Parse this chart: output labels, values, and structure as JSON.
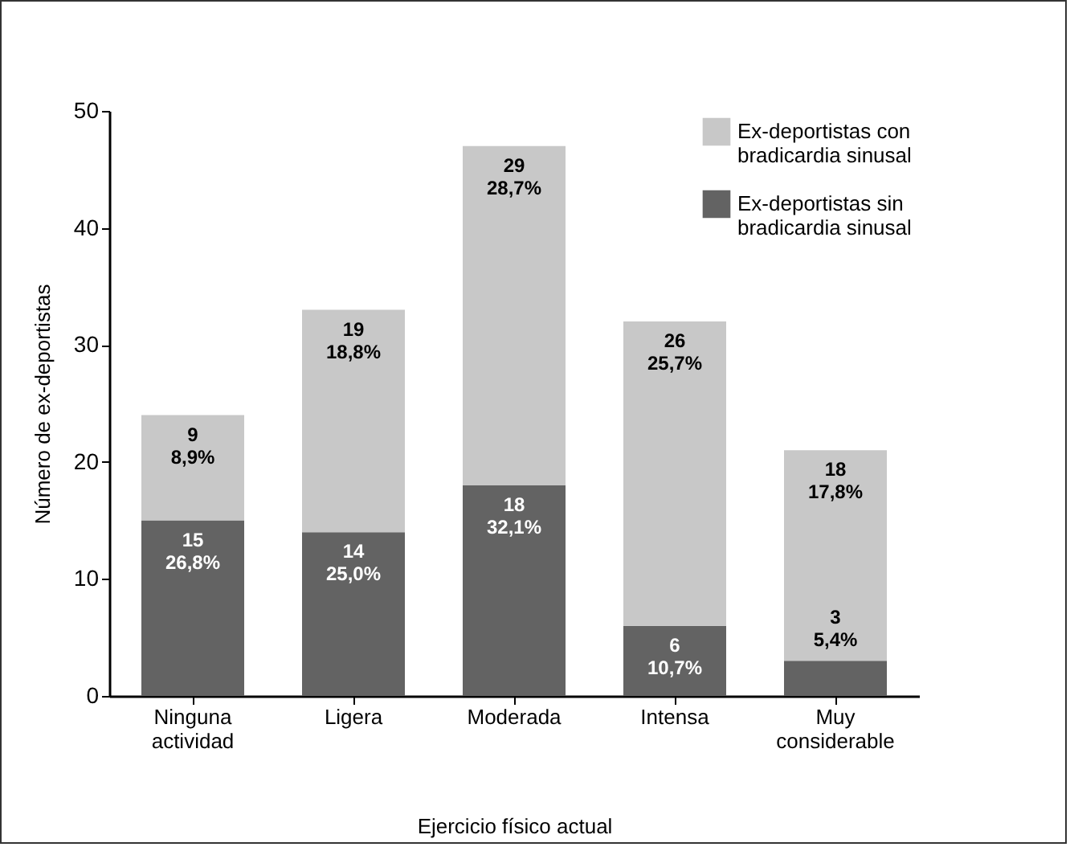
{
  "chart_data": {
    "type": "bar",
    "stacked": true,
    "xlabel": "Ejercicio físico actual",
    "ylabel": "Número de ex-deportistas",
    "categories": [
      "Ninguna actividad",
      "Ligera",
      "Moderada",
      "Intensa",
      "Muy considerable"
    ],
    "series": [
      {
        "name": "Ex-deportistas sin bradicardia sinusal",
        "color": "#636363",
        "values": [
          15,
          14,
          18,
          6,
          3
        ],
        "value_labels": [
          "15\n26,8%",
          "14\n25,0%",
          "18\n32,1%",
          "6\n10,7%",
          "3\n5,4%"
        ]
      },
      {
        "name": "Ex-deportistas con bradicardia sinusal",
        "color": "#c8c8c8",
        "values": [
          9,
          19,
          29,
          26,
          18
        ],
        "value_labels": [
          "9\n8,9%",
          "19\n18,8%",
          "29\n28,7%",
          "26\n25,7%",
          "18\n17,8%"
        ]
      }
    ],
    "ylim": [
      0,
      50
    ],
    "yticks": [
      0,
      10,
      20,
      30,
      40,
      50
    ],
    "grid": false,
    "legend": "top right"
  }
}
